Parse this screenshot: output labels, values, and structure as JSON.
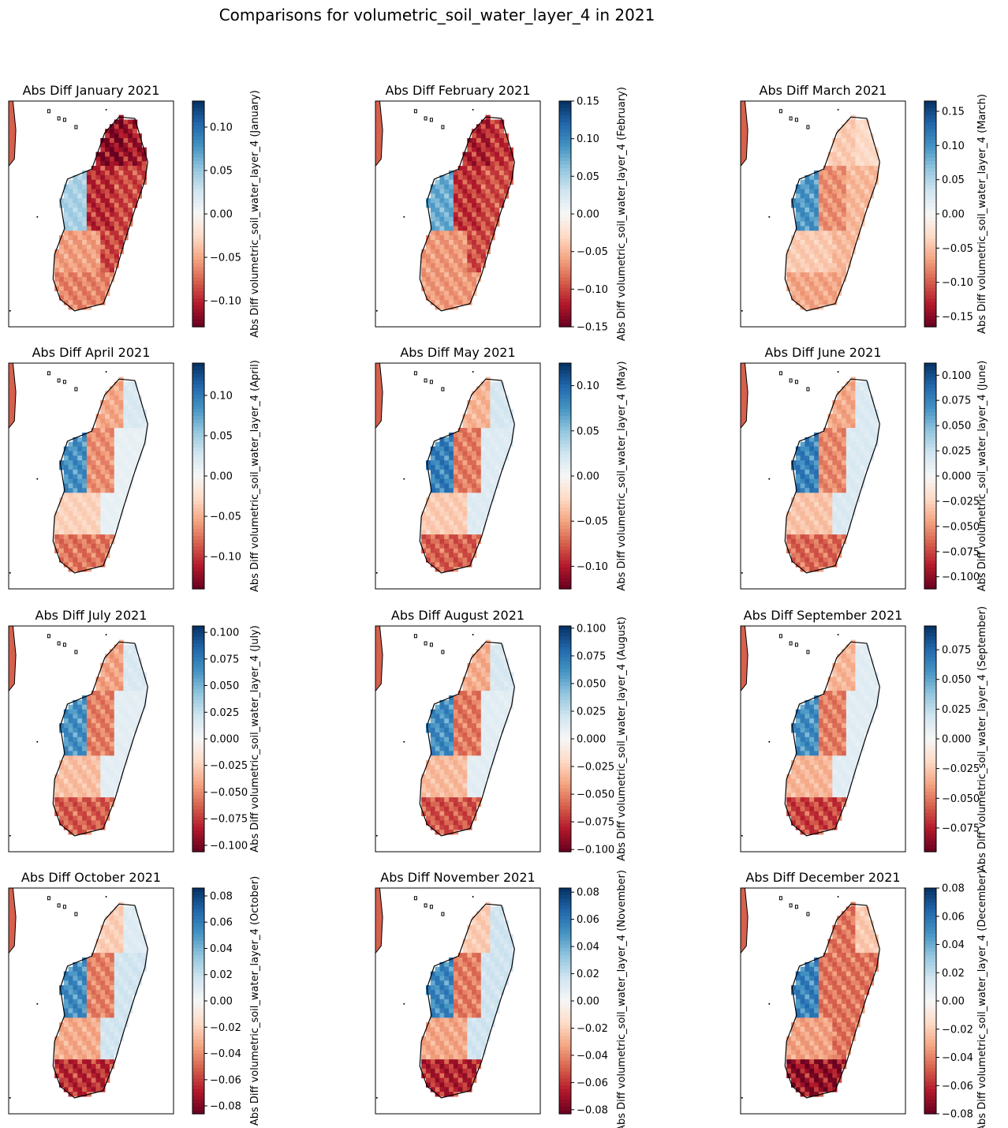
{
  "figure": {
    "title": "Comparisons for volumetric_soil_water_layer_4 in 2021",
    "colormap": [
      "#67001f",
      "#b2182b",
      "#d6604d",
      "#f4a582",
      "#fddbc7",
      "#f7f7f7",
      "#d1e5f0",
      "#92c5de",
      "#4393c3",
      "#2166ac",
      "#053061"
    ],
    "outline_color": "#000000",
    "coastline": [
      [
        47.2,
        -13.2
      ],
      [
        48.2,
        -12.1
      ],
      [
        49.3,
        -12.2
      ],
      [
        50.2,
        -15.2
      ],
      [
        50.0,
        -16.5
      ],
      [
        49.3,
        -18.5
      ],
      [
        48.5,
        -21.0
      ],
      [
        47.9,
        -23.0
      ],
      [
        47.1,
        -25.0
      ],
      [
        45.1,
        -25.5
      ],
      [
        44.1,
        -24.7
      ],
      [
        43.6,
        -23.3
      ],
      [
        43.7,
        -21.6
      ],
      [
        44.4,
        -19.8
      ],
      [
        44.1,
        -17.9
      ],
      [
        44.6,
        -16.4
      ],
      [
        46.3,
        -15.7
      ]
    ]
  },
  "chart_data": [
    {
      "type": "heatmap",
      "title": "Abs Diff January 2021",
      "colorbar": {
        "label": "Abs Diff volumetric_soil_water_layer_4 (January)",
        "range": [
          -0.13,
          0.13
        ],
        "ticks": [
          {
            "v": 0.1,
            "label": "0.10"
          },
          {
            "v": 0.05,
            "label": "0.05"
          },
          {
            "v": 0,
            "label": "0.00"
          },
          {
            "v": -0.05,
            "label": "−0.05"
          },
          {
            "v": -0.1,
            "label": "−0.10"
          }
        ]
      },
      "regions": {
        "north": -0.11,
        "northeast": -0.1,
        "central": -0.09,
        "west": 0.04,
        "southwest": -0.05,
        "south": -0.06,
        "east": -0.08
      }
    },
    {
      "type": "heatmap",
      "title": "Abs Diff February 2021",
      "colorbar": {
        "label": "Abs Diff volumetric_soil_water_layer_4 (February)",
        "range": [
          -0.15,
          0.15
        ],
        "ticks": [
          {
            "v": 0.15,
            "label": "0.15"
          },
          {
            "v": 0.1,
            "label": "0.10"
          },
          {
            "v": 0.05,
            "label": "0.05"
          },
          {
            "v": 0,
            "label": "0.00"
          },
          {
            "v": -0.05,
            "label": "−0.05"
          },
          {
            "v": -0.1,
            "label": "−0.10"
          },
          {
            "v": -0.15,
            "label": "−0.15"
          }
        ]
      },
      "regions": {
        "north": -0.11,
        "northeast": -0.1,
        "central": -0.1,
        "west": 0.07,
        "southwest": -0.06,
        "south": -0.06,
        "east": -0.09
      }
    },
    {
      "type": "heatmap",
      "title": "Abs Diff March 2021",
      "colorbar": {
        "label": "Abs Diff volumetric_soil_water_layer_4 (March)",
        "range": [
          -0.165,
          0.165
        ],
        "ticks": [
          {
            "v": 0.15,
            "label": "0.15"
          },
          {
            "v": 0.1,
            "label": "0.10"
          },
          {
            "v": 0.05,
            "label": "0.05"
          },
          {
            "v": 0,
            "label": "0.00"
          },
          {
            "v": -0.05,
            "label": "−0.05"
          },
          {
            "v": -0.1,
            "label": "−0.10"
          },
          {
            "v": -0.15,
            "label": "−0.15"
          }
        ]
      },
      "regions": {
        "north": -0.04,
        "northeast": -0.03,
        "central": -0.07,
        "west": 0.09,
        "southwest": -0.04,
        "south": -0.06,
        "east": -0.05
      }
    },
    {
      "type": "heatmap",
      "title": "Abs Diff April 2021",
      "colorbar": {
        "label": "Abs Diff volumetric_soil_water_layer_4 (April)",
        "range": [
          -0.14,
          0.14
        ],
        "ticks": [
          {
            "v": 0.1,
            "label": "0.10"
          },
          {
            "v": 0.05,
            "label": "0.05"
          },
          {
            "v": 0,
            "label": "0.00"
          },
          {
            "v": -0.05,
            "label": "−0.05"
          },
          {
            "v": -0.1,
            "label": "−0.10"
          }
        ]
      },
      "regions": {
        "north": -0.05,
        "northeast": 0.02,
        "central": -0.06,
        "west": 0.08,
        "southwest": -0.03,
        "south": -0.07,
        "east": 0.01
      }
    },
    {
      "type": "heatmap",
      "title": "Abs Diff May 2021",
      "colorbar": {
        "label": "Abs Diff volumetric_soil_water_layer_4 (May)",
        "range": [
          -0.125,
          0.125
        ],
        "ticks": [
          {
            "v": 0.1,
            "label": "0.10"
          },
          {
            "v": 0.05,
            "label": "0.05"
          },
          {
            "v": 0,
            "label": "0.00"
          },
          {
            "v": -0.05,
            "label": "−0.05"
          },
          {
            "v": -0.1,
            "label": "−0.10"
          }
        ]
      },
      "regions": {
        "north": -0.04,
        "northeast": 0.02,
        "central": -0.06,
        "west": 0.08,
        "southwest": -0.03,
        "south": -0.07,
        "east": 0.015
      }
    },
    {
      "type": "heatmap",
      "title": "Abs Diff June 2021",
      "colorbar": {
        "label": "Abs Diff volumetric_soil_water_layer_4 (June)",
        "range": [
          -0.112,
          0.112
        ],
        "ticks": [
          {
            "v": 0.1,
            "label": "0.100"
          },
          {
            "v": 0.075,
            "label": "0.075"
          },
          {
            "v": 0.05,
            "label": "0.050"
          },
          {
            "v": 0.025,
            "label": "0.025"
          },
          {
            "v": 0,
            "label": "0.000"
          },
          {
            "v": -0.025,
            "label": "−0.025"
          },
          {
            "v": -0.05,
            "label": "−0.050"
          },
          {
            "v": -0.075,
            "label": "−0.075"
          },
          {
            "v": -0.1,
            "label": "−0.100"
          }
        ]
      },
      "regions": {
        "north": -0.04,
        "northeast": 0.015,
        "central": -0.05,
        "west": 0.07,
        "southwest": -0.03,
        "south": -0.06,
        "east": 0.015
      }
    },
    {
      "type": "heatmap",
      "title": "Abs Diff July 2021",
      "colorbar": {
        "label": "Abs Diff volumetric_soil_water_layer_4 (July)",
        "range": [
          -0.106,
          0.106
        ],
        "ticks": [
          {
            "v": 0.1,
            "label": "0.100"
          },
          {
            "v": 0.075,
            "label": "0.075"
          },
          {
            "v": 0.05,
            "label": "0.050"
          },
          {
            "v": 0.025,
            "label": "0.025"
          },
          {
            "v": 0,
            "label": "0.000"
          },
          {
            "v": -0.025,
            "label": "−0.025"
          },
          {
            "v": -0.05,
            "label": "−0.050"
          },
          {
            "v": -0.075,
            "label": "−0.075"
          },
          {
            "v": -0.1,
            "label": "−0.100"
          }
        ]
      },
      "regions": {
        "north": -0.04,
        "northeast": 0.015,
        "central": -0.05,
        "west": 0.06,
        "southwest": -0.03,
        "south": -0.06,
        "east": 0.01
      }
    },
    {
      "type": "heatmap",
      "title": "Abs Diff August 2021",
      "colorbar": {
        "label": "Abs Diff volumetric_soil_water_layer_4 (August)",
        "range": [
          -0.102,
          0.102
        ],
        "ticks": [
          {
            "v": 0.1,
            "label": "0.100"
          },
          {
            "v": 0.075,
            "label": "0.075"
          },
          {
            "v": 0.05,
            "label": "0.050"
          },
          {
            "v": 0.025,
            "label": "0.025"
          },
          {
            "v": 0,
            "label": "0.000"
          },
          {
            "v": -0.025,
            "label": "−0.025"
          },
          {
            "v": -0.05,
            "label": "−0.050"
          },
          {
            "v": -0.075,
            "label": "−0.075"
          },
          {
            "v": -0.1,
            "label": "−0.100"
          }
        ]
      },
      "regions": {
        "north": -0.035,
        "northeast": 0.015,
        "central": -0.05,
        "west": 0.06,
        "southwest": -0.03,
        "south": -0.06,
        "east": 0.01
      }
    },
    {
      "type": "heatmap",
      "title": "Abs Diff September 2021",
      "colorbar": {
        "label": "Abs Diff volumetric_soil_water_layer_4 (September)",
        "range": [
          -0.095,
          0.095
        ],
        "ticks": [
          {
            "v": 0.075,
            "label": "0.075"
          },
          {
            "v": 0.05,
            "label": "0.050"
          },
          {
            "v": 0.025,
            "label": "0.025"
          },
          {
            "v": 0,
            "label": "0.000"
          },
          {
            "v": -0.025,
            "label": "−0.025"
          },
          {
            "v": -0.05,
            "label": "−0.050"
          },
          {
            "v": -0.075,
            "label": "−0.075"
          }
        ]
      },
      "regions": {
        "north": -0.03,
        "northeast": 0.01,
        "central": -0.045,
        "west": 0.055,
        "southwest": -0.03,
        "south": -0.06,
        "east": 0.01
      }
    },
    {
      "type": "heatmap",
      "title": "Abs Diff October 2021",
      "colorbar": {
        "label": "Abs Diff volumetric_soil_water_layer_4 (October)",
        "range": [
          -0.086,
          0.086
        ],
        "ticks": [
          {
            "v": 0.08,
            "label": "0.08"
          },
          {
            "v": 0.06,
            "label": "0.06"
          },
          {
            "v": 0.04,
            "label": "0.04"
          },
          {
            "v": 0.02,
            "label": "0.02"
          },
          {
            "v": 0,
            "label": "0.00"
          },
          {
            "v": -0.02,
            "label": "−0.02"
          },
          {
            "v": -0.04,
            "label": "−0.04"
          },
          {
            "v": -0.06,
            "label": "−0.06"
          },
          {
            "v": -0.08,
            "label": "−0.08"
          }
        ]
      },
      "regions": {
        "north": -0.02,
        "northeast": 0.01,
        "central": -0.04,
        "west": 0.05,
        "southwest": -0.03,
        "south": -0.06,
        "east": 0.015
      }
    },
    {
      "type": "heatmap",
      "title": "Abs Diff November 2021",
      "colorbar": {
        "label": "Abs Diff volumetric_soil_water_layer_4 (November)",
        "range": [
          -0.083,
          0.083
        ],
        "ticks": [
          {
            "v": 0.08,
            "label": "0.08"
          },
          {
            "v": 0.06,
            "label": "0.06"
          },
          {
            "v": 0.04,
            "label": "0.04"
          },
          {
            "v": 0.02,
            "label": "0.02"
          },
          {
            "v": 0,
            "label": "0.00"
          },
          {
            "v": -0.02,
            "label": "−0.02"
          },
          {
            "v": -0.04,
            "label": "−0.04"
          },
          {
            "v": -0.06,
            "label": "−0.06"
          },
          {
            "v": -0.08,
            "label": "−0.08"
          }
        ]
      },
      "regions": {
        "north": -0.02,
        "northeast": 0.015,
        "central": -0.04,
        "west": 0.05,
        "southwest": -0.03,
        "south": -0.06,
        "east": 0.015
      }
    },
    {
      "type": "heatmap",
      "title": "Abs Diff December 2021",
      "colorbar": {
        "label": "Abs Diff volumetric_soil_water_layer_4 (December)",
        "range": [
          -0.08,
          0.08
        ],
        "ticks": [
          {
            "v": 0.08,
            "label": "0.08"
          },
          {
            "v": 0.06,
            "label": "0.06"
          },
          {
            "v": 0.04,
            "label": "0.04"
          },
          {
            "v": 0.02,
            "label": "0.02"
          },
          {
            "v": 0,
            "label": "0.00"
          },
          {
            "v": -0.02,
            "label": "−0.02"
          },
          {
            "v": -0.04,
            "label": "−0.04"
          },
          {
            "v": -0.06,
            "label": "−0.06"
          },
          {
            "v": -0.08,
            "label": "−0.08"
          }
        ]
      },
      "regions": {
        "north": -0.04,
        "northeast": -0.02,
        "central": -0.04,
        "west": 0.05,
        "southwest": -0.03,
        "south": -0.065,
        "east": -0.04
      }
    }
  ]
}
